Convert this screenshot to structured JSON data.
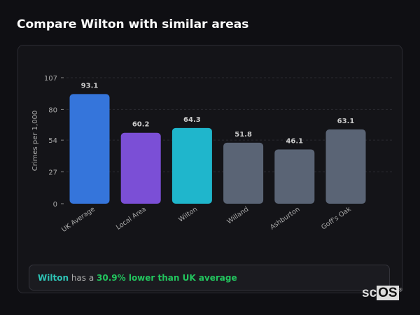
{
  "title": "Compare Wilton with similar areas",
  "chart_data": {
    "type": "bar",
    "categories": [
      "UK Average",
      "Local Area",
      "Wilton",
      "Willand",
      "Ashburton",
      "Goff's Oak"
    ],
    "values": [
      93.1,
      60.2,
      64.3,
      51.8,
      46.1,
      63.1
    ],
    "colors": [
      "#3575db",
      "#7b4fd6",
      "#1fb6cc",
      "#5a6475",
      "#5a6475",
      "#5a6475"
    ],
    "ylabel": "Crimes per 1,000",
    "yticks": [
      0,
      27,
      54,
      80,
      107
    ],
    "ylim": [
      0,
      107
    ],
    "grid": true
  },
  "summary": {
    "area": "Wilton",
    "middle": " has a ",
    "highlight": "30.9% lower than UK average"
  },
  "logo": {
    "text_a": "sc",
    "text_b": "OS",
    "mark": "®"
  }
}
